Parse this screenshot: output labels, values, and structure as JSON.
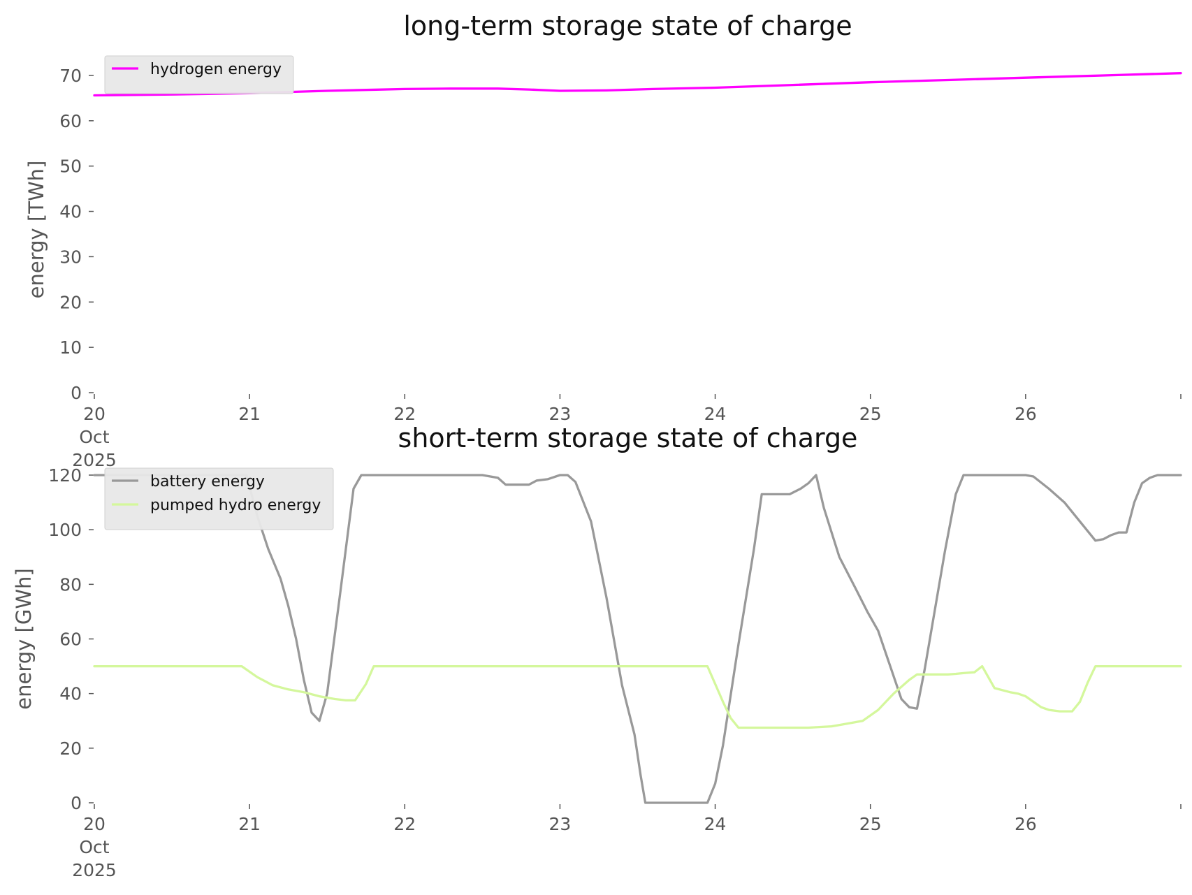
{
  "chart_data": [
    {
      "type": "line",
      "title": "long-term storage state of charge",
      "xlabel": "",
      "ylabel": "energy [TWh]",
      "x_unit": "day of October 2025",
      "xlim": [
        20,
        27
      ],
      "ylim": [
        0,
        72
      ],
      "x_tick_labels": [
        "20\nOct\n2025",
        "21",
        "22",
        "23",
        "24",
        "25",
        "26",
        ""
      ],
      "y_ticks": [
        0,
        10,
        20,
        30,
        40,
        50,
        60,
        70
      ],
      "grid": false,
      "legend": "top-left",
      "series": [
        {
          "name": "hydrogen energy",
          "color": "#ff00ff",
          "points": [
            [
              20.0,
              65.6
            ],
            [
              20.5,
              65.8
            ],
            [
              21.0,
              66.1
            ],
            [
              21.5,
              66.6
            ],
            [
              22.0,
              67.0
            ],
            [
              22.3,
              67.1
            ],
            [
              22.6,
              67.1
            ],
            [
              22.8,
              66.9
            ],
            [
              23.0,
              66.6
            ],
            [
              23.3,
              66.7
            ],
            [
              23.6,
              67.0
            ],
            [
              24.0,
              67.3
            ],
            [
              24.5,
              67.9
            ],
            [
              25.0,
              68.5
            ],
            [
              25.5,
              69.0
            ],
            [
              26.0,
              69.5
            ],
            [
              26.5,
              70.0
            ],
            [
              27.0,
              70.5
            ]
          ]
        }
      ]
    },
    {
      "type": "line",
      "title": "short-term storage state of charge",
      "xlabel": "",
      "ylabel": "energy [GWh]",
      "x_unit": "day of October 2025",
      "xlim": [
        20,
        27
      ],
      "ylim": [
        0,
        120
      ],
      "x_tick_labels": [
        "20\nOct\n2025",
        "21",
        "22",
        "23",
        "24",
        "25",
        "26",
        ""
      ],
      "y_ticks": [
        0,
        20,
        40,
        60,
        80,
        100,
        120
      ],
      "grid": false,
      "legend": "top-left",
      "series": [
        {
          "name": "battery energy",
          "color": "#999999",
          "points": [
            [
              20.0,
              120
            ],
            [
              20.98,
              120
            ],
            [
              21.05,
              105
            ],
            [
              21.12,
              93
            ],
            [
              21.2,
              82
            ],
            [
              21.25,
              72
            ],
            [
              21.3,
              60
            ],
            [
              21.35,
              45
            ],
            [
              21.4,
              33
            ],
            [
              21.45,
              30
            ],
            [
              21.5,
              40
            ],
            [
              21.58,
              75
            ],
            [
              21.67,
              115
            ],
            [
              21.72,
              120
            ],
            [
              22.0,
              120
            ],
            [
              22.5,
              120
            ],
            [
              22.6,
              119
            ],
            [
              22.65,
              116.5
            ],
            [
              22.8,
              116.5
            ],
            [
              22.85,
              118
            ],
            [
              22.92,
              118.5
            ],
            [
              23.0,
              120
            ],
            [
              23.05,
              120
            ],
            [
              23.1,
              117.5
            ],
            [
              23.2,
              103
            ],
            [
              23.3,
              75
            ],
            [
              23.4,
              43
            ],
            [
              23.48,
              25
            ],
            [
              23.52,
              10
            ],
            [
              23.55,
              0
            ],
            [
              23.95,
              0
            ],
            [
              24.0,
              7
            ],
            [
              24.05,
              21
            ],
            [
              24.15,
              58
            ],
            [
              24.25,
              93
            ],
            [
              24.3,
              113
            ],
            [
              24.48,
              113
            ],
            [
              24.55,
              115
            ],
            [
              24.6,
              117
            ],
            [
              24.65,
              120
            ],
            [
              24.7,
              108
            ],
            [
              24.8,
              90
            ],
            [
              24.9,
              79
            ],
            [
              24.98,
              70
            ],
            [
              25.05,
              63
            ],
            [
              25.2,
              38
            ],
            [
              25.25,
              35
            ],
            [
              25.3,
              34.5
            ],
            [
              25.35,
              49
            ],
            [
              25.48,
              92
            ],
            [
              25.55,
              113
            ],
            [
              25.6,
              120
            ],
            [
              26.0,
              120
            ],
            [
              26.05,
              119.5
            ],
            [
              26.15,
              115
            ],
            [
              26.25,
              110
            ],
            [
              26.35,
              103
            ],
            [
              26.45,
              96
            ],
            [
              26.5,
              96.5
            ],
            [
              26.55,
              98
            ],
            [
              26.6,
              99
            ],
            [
              26.65,
              99
            ],
            [
              26.7,
              110
            ],
            [
              26.75,
              117
            ],
            [
              26.8,
              119
            ],
            [
              26.85,
              120
            ],
            [
              26.95,
              120
            ],
            [
              27.0,
              120
            ]
          ]
        },
        {
          "name": "pumped hydro energy",
          "color": "#d4f79c",
          "points": [
            [
              20.0,
              50
            ],
            [
              20.95,
              50
            ],
            [
              21.05,
              46
            ],
            [
              21.15,
              43
            ],
            [
              21.25,
              41.5
            ],
            [
              21.35,
              40.5
            ],
            [
              21.45,
              39
            ],
            [
              21.55,
              38
            ],
            [
              21.62,
              37.5
            ],
            [
              21.68,
              37.5
            ],
            [
              21.75,
              43.5
            ],
            [
              21.8,
              50
            ],
            [
              22.0,
              50
            ],
            [
              22.5,
              50
            ],
            [
              23.0,
              50
            ],
            [
              23.5,
              50
            ],
            [
              23.95,
              50
            ],
            [
              24.05,
              37
            ],
            [
              24.1,
              31
            ],
            [
              24.15,
              27.5
            ],
            [
              24.3,
              27.5
            ],
            [
              24.6,
              27.5
            ],
            [
              24.75,
              28
            ],
            [
              24.85,
              29
            ],
            [
              24.95,
              30
            ],
            [
              25.05,
              34
            ],
            [
              25.15,
              40
            ],
            [
              25.25,
              45
            ],
            [
              25.3,
              47
            ],
            [
              25.5,
              47
            ],
            [
              25.55,
              47.2
            ],
            [
              25.6,
              47.5
            ],
            [
              25.67,
              47.8
            ],
            [
              25.72,
              50
            ],
            [
              25.75,
              47
            ],
            [
              25.8,
              42
            ],
            [
              25.9,
              40.5
            ],
            [
              25.95,
              40
            ],
            [
              26.0,
              39
            ],
            [
              26.05,
              37
            ],
            [
              26.1,
              35
            ],
            [
              26.15,
              34
            ],
            [
              26.22,
              33.5
            ],
            [
              26.3,
              33.5
            ],
            [
              26.35,
              37
            ],
            [
              26.4,
              44
            ],
            [
              26.45,
              50
            ],
            [
              27.0,
              50
            ]
          ]
        }
      ]
    }
  ]
}
